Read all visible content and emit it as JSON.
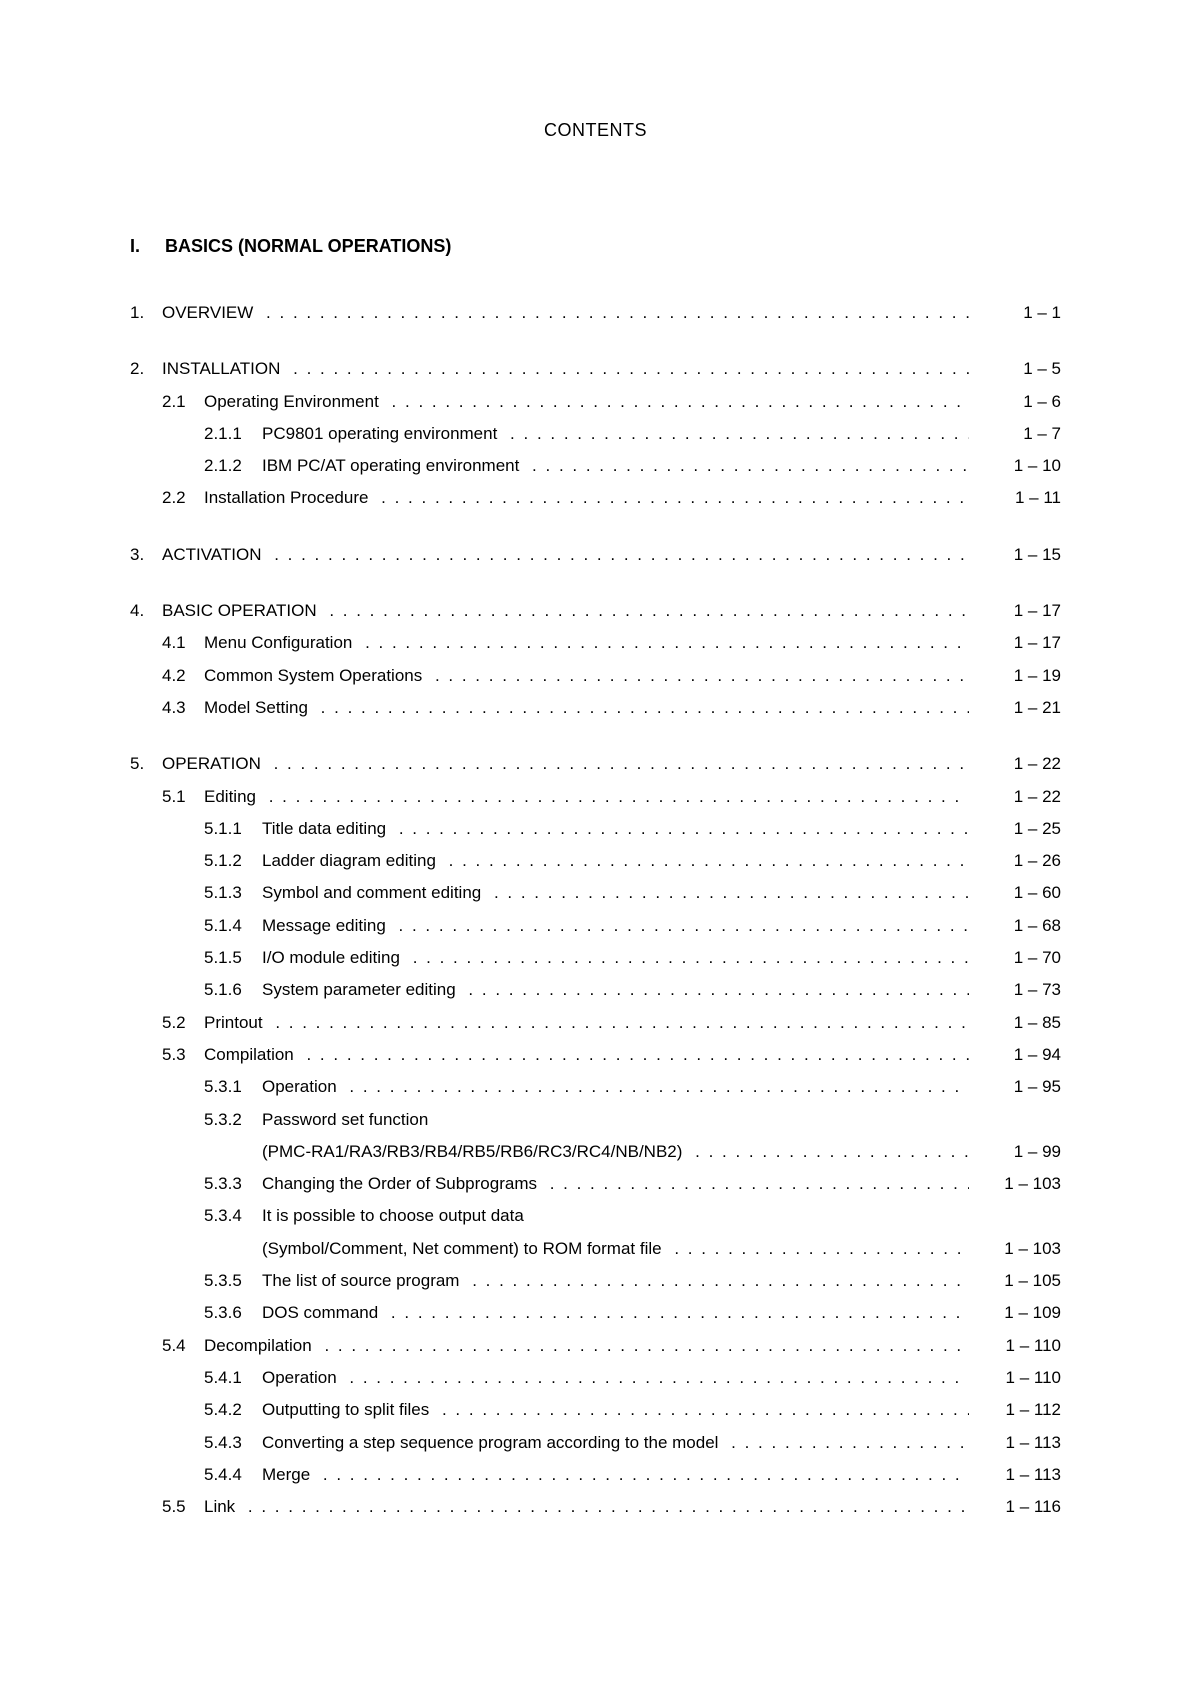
{
  "title": "CONTENTS",
  "part": {
    "num": "I.",
    "label": "BASICS (NORMAL OPERATIONS)"
  },
  "chapters": [
    {
      "num": "1.",
      "title": "OVERVIEW",
      "page": "1 – 1",
      "sections": []
    },
    {
      "num": "2.",
      "title": "INSTALLATION",
      "page": "1 – 5",
      "sections": [
        {
          "num": "2.1",
          "title": "Operating Environment",
          "page": "1 – 6",
          "subs": [
            {
              "num": "2.1.1",
              "title": "PC9801 operating environment",
              "page": "1 – 7"
            },
            {
              "num": "2.1.2",
              "title": "IBM PC/AT operating environment",
              "page": "1 – 10"
            }
          ]
        },
        {
          "num": "2.2",
          "title": "Installation Procedure",
          "page": "1 – 11",
          "subs": []
        }
      ]
    },
    {
      "num": "3.",
      "title": "ACTIVATION",
      "page": "1 – 15",
      "sections": []
    },
    {
      "num": "4.",
      "title": "BASIC OPERATION",
      "page": "1 – 17",
      "sections": [
        {
          "num": "4.1",
          "title": "Menu Configuration",
          "page": "1 – 17",
          "subs": []
        },
        {
          "num": "4.2",
          "title": "Common System Operations",
          "page": "1 – 19",
          "subs": []
        },
        {
          "num": "4.3",
          "title": "Model Setting",
          "page": "1 – 21",
          "subs": []
        }
      ]
    },
    {
      "num": "5.",
      "title": "OPERATION",
      "page": "1 – 22",
      "sections": [
        {
          "num": "5.1",
          "title": "Editing",
          "page": "1 – 22",
          "subs": [
            {
              "num": "5.1.1",
              "title": "Title data editing",
              "page": "1 – 25"
            },
            {
              "num": "5.1.2",
              "title": "Ladder diagram editing",
              "page": "1 – 26"
            },
            {
              "num": "5.1.3",
              "title": "Symbol and comment editing",
              "page": "1 – 60"
            },
            {
              "num": "5.1.4",
              "title": "Message editing",
              "page": "1 – 68"
            },
            {
              "num": "5.1.5",
              "title": "I/O module editing",
              "page": "1 – 70"
            },
            {
              "num": "5.1.6",
              "title": "System parameter editing",
              "page": "1 – 73"
            }
          ]
        },
        {
          "num": "5.2",
          "title": "Printout",
          "page": "1 – 85",
          "subs": []
        },
        {
          "num": "5.3",
          "title": "Compilation",
          "page": "1 – 94",
          "subs": [
            {
              "num": "5.3.1",
              "title": "Operation",
              "page": "1 – 95"
            },
            {
              "num": "5.3.2",
              "title": "Password set function",
              "page": "",
              "noLeader": true
            },
            {
              "num": "",
              "title": "(PMC-RA1/RA3/RB3/RB4/RB5/RB6/RC3/RC4/NB/NB2)",
              "page": "1 – 99"
            },
            {
              "num": "5.3.3",
              "title": "Changing the Order of Subprograms",
              "page": "1 – 103"
            },
            {
              "num": "5.3.4",
              "title": "It is possible to choose output data",
              "page": "",
              "noLeader": true
            },
            {
              "num": "",
              "title": "(Symbol/Comment, Net comment) to ROM format file",
              "page": "1 – 103"
            },
            {
              "num": "5.3.5",
              "title": "The list of source program",
              "page": "1 – 105"
            },
            {
              "num": "5.3.6",
              "title": "DOS command",
              "page": "1 – 109"
            }
          ]
        },
        {
          "num": "5.4",
          "title": "Decompilation",
          "page": "1 – 110",
          "subs": [
            {
              "num": "5.4.1",
              "title": "Operation",
              "page": "1 – 110"
            },
            {
              "num": "5.4.2",
              "title": "Outputting to split files",
              "page": "1 – 112"
            },
            {
              "num": "5.4.3",
              "title": "Converting a step sequence program according to the model",
              "page": "1 – 113"
            },
            {
              "num": "5.4.4",
              "title": "Merge",
              "page": "1 – 113"
            }
          ]
        },
        {
          "num": "5.5",
          "title": "Link",
          "page": "1 – 116",
          "subs": []
        }
      ]
    }
  ]
}
